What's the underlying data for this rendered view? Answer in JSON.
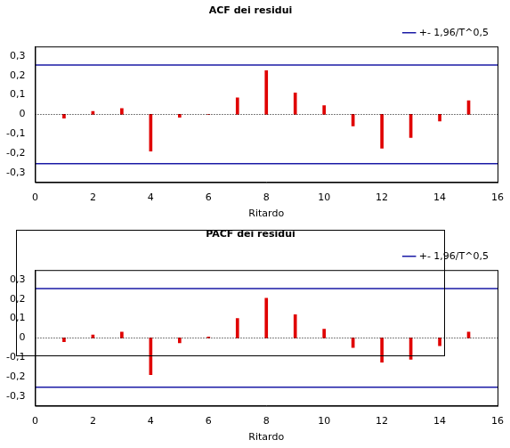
{
  "chart_data": [
    {
      "type": "bar",
      "title": "ACF dei residui",
      "x_label": "Ritardo",
      "x": [
        1,
        2,
        3,
        4,
        5,
        6,
        7,
        8,
        9,
        10,
        11,
        12,
        13,
        14,
        15
      ],
      "values": [
        -0.02,
        0.015,
        0.03,
        -0.19,
        -0.015,
        0.0,
        0.085,
        0.225,
        0.11,
        0.045,
        -0.06,
        -0.175,
        -0.12,
        -0.035,
        0.07
      ],
      "color": "#e00000",
      "confidence_band": {
        "label": "+- 1,96/T^0,5",
        "values": [
          -0.254,
          0.254
        ],
        "color": "#1a1aa6"
      },
      "xlim": [
        0,
        16
      ],
      "xticks": [
        0,
        2,
        4,
        6,
        8,
        10,
        12,
        14,
        16
      ],
      "ylim": [
        -0.35,
        0.35
      ],
      "yticks": [
        {
          "value": -0.3,
          "label": "-0,3"
        },
        {
          "value": -0.2,
          "label": "-0,2"
        },
        {
          "value": -0.1,
          "label": "-0,1"
        },
        0,
        {
          "value": 0.1,
          "label": "0,1"
        },
        {
          "value": 0.2,
          "label": "0,2"
        },
        {
          "value": 0.3,
          "label": "0,3"
        }
      ],
      "grid": false,
      "legend": "upper right"
    },
    {
      "type": "bar",
      "title": "PACF dei residui",
      "x_label": "Ritardo",
      "x": [
        1,
        2,
        3,
        4,
        5,
        6,
        7,
        8,
        9,
        10,
        11,
        12,
        13,
        14,
        15
      ],
      "values": [
        -0.02,
        0.015,
        0.03,
        -0.19,
        -0.025,
        0.005,
        0.1,
        0.205,
        0.12,
        0.045,
        -0.05,
        -0.125,
        -0.11,
        -0.04,
        0.03
      ],
      "color": "#e00000",
      "confidence_band": {
        "label": "+- 1,96/T^0,5",
        "values": [
          -0.254,
          0.254
        ],
        "color": "#1a1aa6"
      },
      "xlim": [
        0,
        16
      ],
      "xticks": [
        0,
        2,
        4,
        6,
        8,
        10,
        12,
        14,
        16
      ],
      "ylim": [
        -0.35,
        0.35
      ],
      "yticks": [
        {
          "value": -0.3,
          "label": "-0,3"
        },
        {
          "value": -0.2,
          "label": "-0,2"
        },
        {
          "value": -0.1,
          "label": "-0,1"
        },
        0,
        {
          "value": 0.1,
          "label": "0,1"
        },
        {
          "value": 0.2,
          "label": "0,2"
        },
        {
          "value": 0.3,
          "label": "0,3"
        }
      ],
      "grid": false,
      "legend": "upper right"
    }
  ]
}
